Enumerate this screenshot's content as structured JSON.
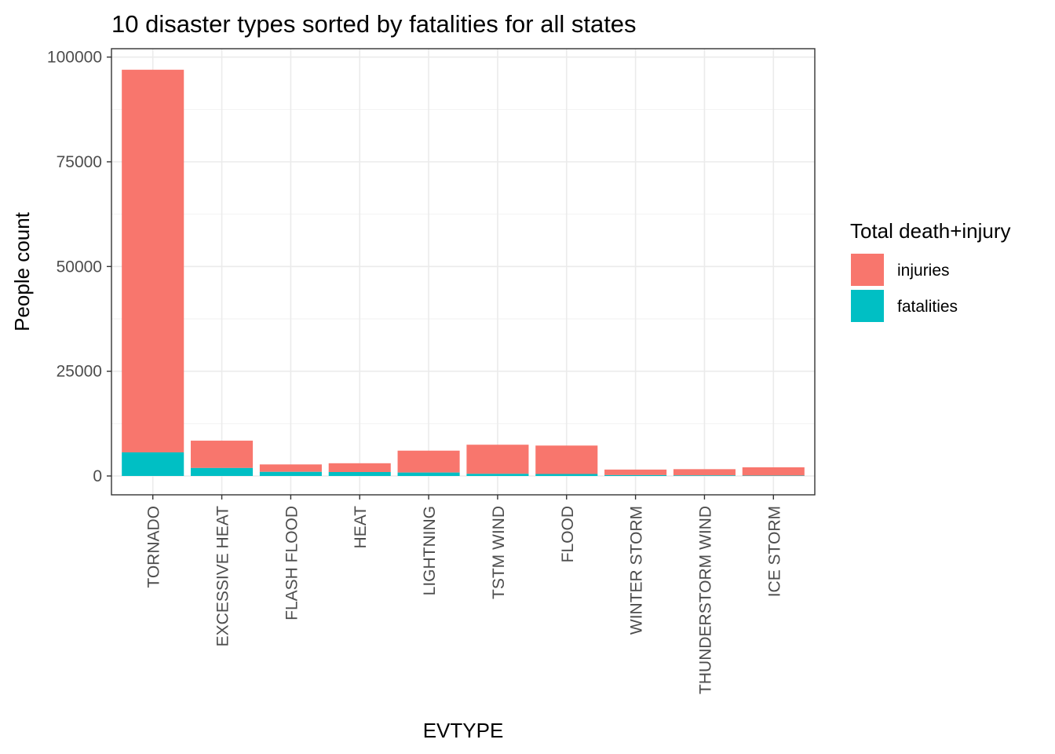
{
  "chart_data": {
    "type": "bar",
    "stacked": true,
    "title": "10 disaster types sorted by fatalities for all states",
    "xlabel": "EVTYPE",
    "ylabel": "People count",
    "ylim": [
      -4500,
      102000
    ],
    "yticks": [
      0,
      25000,
      50000,
      75000,
      100000
    ],
    "ytick_labels": [
      "0",
      "25000",
      "50000",
      "75000",
      "100000"
    ],
    "grid": true,
    "legend": {
      "title": "Total death+injury",
      "position": "right"
    },
    "categories": [
      "TORNADO",
      "EXCESSIVE HEAT",
      "FLASH FLOOD",
      "HEAT",
      "LIGHTNING",
      "TSTM WIND",
      "FLOOD",
      "WINTER STORM",
      "THUNDERSTORM WIND",
      "ICE STORM"
    ],
    "series": [
      {
        "name": "injuries",
        "color": "#F8766D",
        "values": [
          91346,
          6525,
          1777,
          2100,
          5230,
          6957,
          6789,
          1321,
          1488,
          1975
        ]
      },
      {
        "name": "fatalities",
        "color": "#00BFC4",
        "values": [
          5633,
          1903,
          978,
          937,
          816,
          504,
          470,
          206,
          133,
          89
        ]
      }
    ]
  }
}
